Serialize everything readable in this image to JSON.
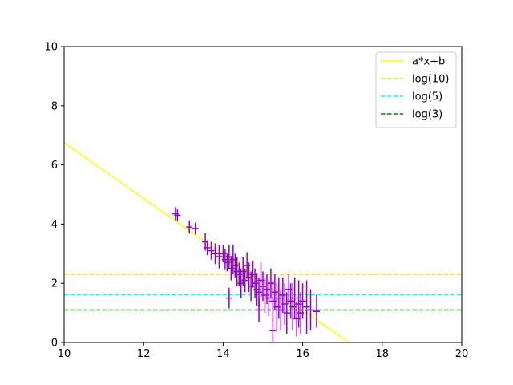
{
  "chart_data": {
    "type": "scatter",
    "title": "",
    "xlabel": "",
    "ylabel": "",
    "xlim": [
      10,
      20
    ],
    "ylim": [
      0,
      10
    ],
    "xticks": [
      10,
      12,
      14,
      16,
      18,
      20
    ],
    "yticks": [
      0,
      2,
      4,
      6,
      8,
      10
    ],
    "grid": false,
    "legend_position": "top-right",
    "series": [
      {
        "name": "a*x+b",
        "kind": "line",
        "color": "#ffff00",
        "dash": "solid",
        "x": [
          10,
          17.16
        ],
        "y": [
          6.75,
          0
        ]
      },
      {
        "name": "log(10)",
        "kind": "hline",
        "color": "#ffd700",
        "dash": "dashed",
        "y": 2.303
      },
      {
        "name": "log(5)",
        "kind": "hline",
        "color": "#00ffff",
        "dash": "dashed",
        "y": 1.609
      },
      {
        "name": "log(3)",
        "kind": "hline",
        "color": "#008000",
        "dash": "dashed",
        "y": 1.099
      }
    ],
    "errorbar_points": {
      "color": "#9400d3",
      "points": [
        [
          12.8,
          4.35,
          0.22
        ],
        [
          12.85,
          4.3,
          0.2
        ],
        [
          13.15,
          3.9,
          0.22
        ],
        [
          13.3,
          3.85,
          0.2
        ],
        [
          13.55,
          3.4,
          0.3
        ],
        [
          13.6,
          3.2,
          0.25
        ],
        [
          13.7,
          3.1,
          0.3
        ],
        [
          13.8,
          3.0,
          0.35
        ],
        [
          13.9,
          2.9,
          0.4
        ],
        [
          14.0,
          3.0,
          0.3
        ],
        [
          14.05,
          2.8,
          0.35
        ],
        [
          14.1,
          2.7,
          0.3
        ],
        [
          14.15,
          2.9,
          0.4
        ],
        [
          14.2,
          2.5,
          0.4
        ],
        [
          14.25,
          2.8,
          0.5
        ],
        [
          14.3,
          2.6,
          0.4
        ],
        [
          14.35,
          2.4,
          0.5
        ],
        [
          14.4,
          2.3,
          0.4
        ],
        [
          14.45,
          2.0,
          0.5
        ],
        [
          14.5,
          2.4,
          0.5
        ],
        [
          14.55,
          2.1,
          0.4
        ],
        [
          14.6,
          2.6,
          0.45
        ],
        [
          14.65,
          2.2,
          0.5
        ],
        [
          14.7,
          1.9,
          0.5
        ],
        [
          14.75,
          2.3,
          0.45
        ],
        [
          14.8,
          2.0,
          0.5
        ],
        [
          14.85,
          1.8,
          0.55
        ],
        [
          14.9,
          1.7,
          0.5
        ],
        [
          14.95,
          2.1,
          0.6
        ],
        [
          15.0,
          1.9,
          0.5
        ],
        [
          15.05,
          1.6,
          0.6
        ],
        [
          15.1,
          1.8,
          0.5
        ],
        [
          15.15,
          1.5,
          0.6
        ],
        [
          15.2,
          2.0,
          0.5
        ],
        [
          15.25,
          1.4,
          0.7
        ],
        [
          15.3,
          1.7,
          0.6
        ],
        [
          15.35,
          1.2,
          0.8
        ],
        [
          15.4,
          1.5,
          0.7
        ],
        [
          15.45,
          1.1,
          0.7
        ],
        [
          15.5,
          1.6,
          0.6
        ],
        [
          15.55,
          1.3,
          0.7
        ],
        [
          15.6,
          1.0,
          0.7
        ],
        [
          15.65,
          1.8,
          0.5
        ],
        [
          15.7,
          1.4,
          0.6
        ],
        [
          15.75,
          1.2,
          0.8
        ],
        [
          15.8,
          1.5,
          0.7
        ],
        [
          15.85,
          0.8,
          0.6
        ],
        [
          15.9,
          1.3,
          0.8
        ],
        [
          15.95,
          1.0,
          0.7
        ],
        [
          16.0,
          1.4,
          0.6
        ],
        [
          16.1,
          1.2,
          0.9
        ],
        [
          16.2,
          1.1,
          0.7
        ],
        [
          16.35,
          1.05,
          0.55
        ],
        [
          14.15,
          1.5,
          0.35
        ],
        [
          14.9,
          1.1,
          0.4
        ],
        [
          15.25,
          0.4,
          0.4
        ]
      ]
    }
  }
}
